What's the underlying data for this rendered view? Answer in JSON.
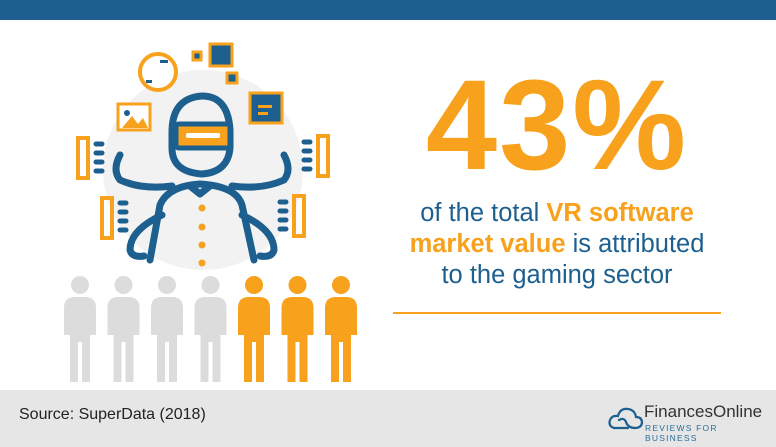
{
  "headline": {
    "value": "43%"
  },
  "statement": {
    "part1": "of the total ",
    "highlight1": "VR software",
    "highlight2": "market value",
    "part2": " is attributed",
    "part3": "to the gaming sector"
  },
  "people_chart": {
    "total": 7,
    "highlighted": 3
  },
  "footer": {
    "source": "Source: SuperData (2018)"
  },
  "logo": {
    "name": "FinancesOnline",
    "tagline": "REVIEWS FOR BUSINESS"
  },
  "colors": {
    "blue": "#1d5f8f",
    "orange": "#f7a11c",
    "gray": "#dcdcdc",
    "footer_bg": "#e6e6e6"
  }
}
